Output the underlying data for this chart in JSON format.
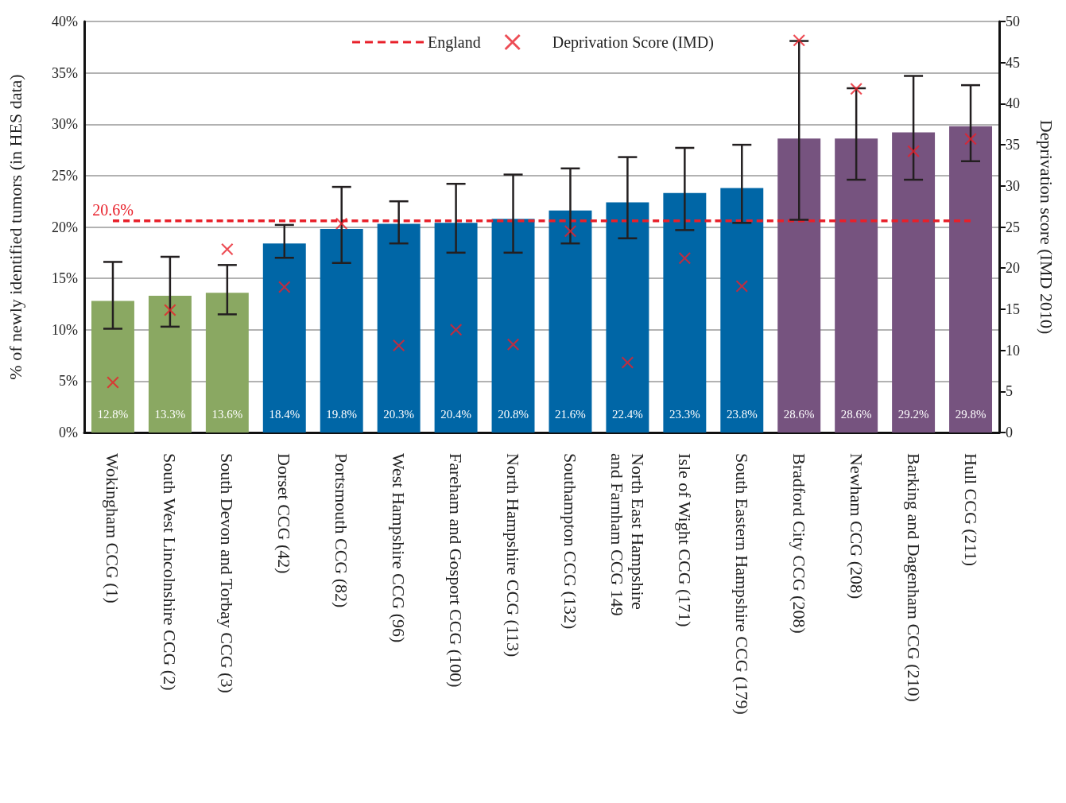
{
  "chart_data": {
    "type": "bar",
    "ylabel": "% of newly identified tumors (in HES data)",
    "y2label": "Deprivation score (IMD 2010)",
    "categories": [
      "Wokingham CCG (1)",
      "South West Lincolnshire CCG (2)",
      "South Devon and Torbay CCG (3)",
      "Dorset CCG (42)",
      "Portsmouth CCG (82)",
      "West Hampshire CCG (96)",
      "Fareham and Gosport CCG (100)",
      "North Hampshire CCG (113)",
      "Southampton CCG (132)",
      "North East Hampshire\nand Farnham CCG 149",
      "Isle of Wight CCG (171)",
      "South Eastern Hampshire CCG (179)",
      "Bradford City CCG (208)",
      "Newham CCG (208)",
      "Barking and Dagenham CCG (210)",
      "Hull CCG (211)"
    ],
    "series": [
      {
        "values": [
          12.8,
          13.3,
          13.6,
          18.4,
          19.8,
          20.3,
          20.4,
          20.8,
          21.6,
          22.4,
          23.3,
          23.8,
          28.6,
          28.6,
          29.2,
          29.8
        ],
        "colors": [
          "#8aa862",
          "#8aa862",
          "#8aa862",
          "#0066a6",
          "#0066a6",
          "#0066a6",
          "#0066a6",
          "#0066a6",
          "#0066a6",
          "#0066a6",
          "#0066a6",
          "#0066a6",
          "#76537f",
          "#76537f",
          "#76537f",
          "#76537f"
        ],
        "value_labels": [
          "12.8%",
          "13.3%",
          "13.6%",
          "18.4%",
          "19.8%",
          "20.3%",
          "20.4%",
          "20.8%",
          "21.6%",
          "22.4%",
          "23.3%",
          "23.8%",
          "28.6%",
          "28.6%",
          "29.2%",
          "29.8%"
        ],
        "errors": [
          [
            10.1,
            16.6
          ],
          [
            10.3,
            17.1
          ],
          [
            11.5,
            16.3
          ],
          [
            17.0,
            20.2
          ],
          [
            16.5,
            23.9
          ],
          [
            18.4,
            22.5
          ],
          [
            17.5,
            24.2
          ],
          [
            17.5,
            25.1
          ],
          [
            18.4,
            25.7
          ],
          [
            18.9,
            26.8
          ],
          [
            19.7,
            27.7
          ],
          [
            20.4,
            28.0
          ],
          [
            20.7,
            38.1
          ],
          [
            24.6,
            33.5
          ],
          [
            24.6,
            34.7
          ],
          [
            26.4,
            33.8
          ]
        ]
      },
      {
        "type": "line",
        "name": "England",
        "color": "#e8202a",
        "line_style": "dashed",
        "marker": "none",
        "values": [
          20.6,
          20.6,
          20.6,
          20.6,
          20.6,
          20.6,
          20.6,
          20.6,
          20.6,
          20.6,
          20.6,
          20.6,
          20.6,
          20.6,
          20.6,
          20.6
        ]
      },
      {
        "type": "scatter",
        "name": "Deprivation Score (IMD)",
        "color": "#e8202a",
        "marker": "cross",
        "axis": "y2",
        "values": [
          6.1,
          14.9,
          22.3,
          17.7,
          25.4,
          10.6,
          12.5,
          10.7,
          24.5,
          8.5,
          21.2,
          17.8,
          47.7,
          41.8,
          34.2,
          35.7
        ]
      }
    ],
    "annotations": [
      {
        "text": "20.6%",
        "x": "Wokingham CCG (1)",
        "y": 20.6
      }
    ],
    "ylim": [
      0,
      40
    ],
    "yticks": [
      {
        "value": 0,
        "label": "0%"
      },
      {
        "value": 5,
        "label": "5%"
      },
      {
        "value": 10,
        "label": "10%"
      },
      {
        "value": 15,
        "label": "15%"
      },
      {
        "value": 20,
        "label": "20%"
      },
      {
        "value": 25,
        "label": "25%"
      },
      {
        "value": 30,
        "label": "30%"
      },
      {
        "value": 35,
        "label": "35%"
      },
      {
        "value": 40,
        "label": "40%"
      }
    ],
    "y2lim": [
      0,
      50
    ],
    "y2ticks": [
      0,
      5,
      10,
      15,
      20,
      25,
      30,
      35,
      40,
      45,
      50
    ],
    "grid": "y",
    "legend": "top"
  }
}
